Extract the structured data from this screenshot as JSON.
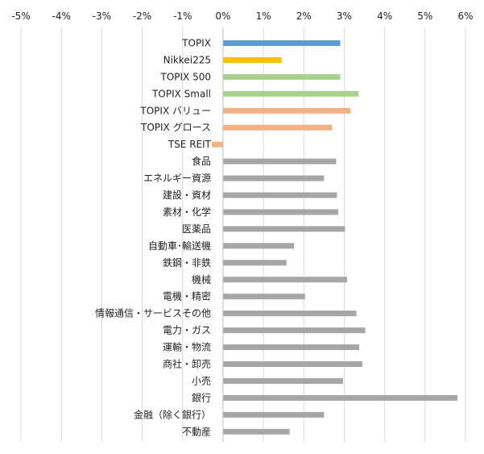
{
  "chart_data": {
    "type": "bar",
    "orientation": "horizontal",
    "title": "",
    "xlabel": "",
    "ylabel": "",
    "xlim": [
      -5,
      6
    ],
    "x_ticks": [
      -5,
      -4,
      -3,
      -2,
      -1,
      0,
      1,
      2,
      3,
      4,
      5,
      6
    ],
    "x_tick_labels": [
      "-5%",
      "-4%",
      "-3%",
      "-2%",
      "-1%",
      "0%",
      "1%",
      "2%",
      "3%",
      "4%",
      "5%",
      "6%"
    ],
    "x_axis_position": "top",
    "grid": true,
    "legend": "none",
    "unit": "%",
    "categories": [
      "TOPIX",
      "Nikkei225",
      "TOPIX 500",
      "TOPIX Small",
      "TOPIX バリュー",
      "TOPIX グロース",
      "TSE REIT",
      "食品",
      "エネルギー資源",
      "建設・資材",
      "素材・化学",
      "医薬品",
      "自動車･輸送機",
      "鉄鋼・非鉄",
      "機械",
      "電機・精密",
      "情報通信・サービスその他",
      "電力・ガス",
      "運輸・物流",
      "商社・卸売",
      "小売",
      "銀行",
      "金融（除く銀行）",
      "不動産"
    ],
    "values": [
      2.9,
      1.45,
      2.9,
      3.35,
      3.15,
      2.7,
      -0.28,
      2.8,
      2.5,
      2.82,
      2.85,
      3.02,
      1.76,
      1.57,
      3.07,
      2.03,
      3.3,
      3.52,
      3.37,
      3.45,
      2.97,
      5.8,
      2.5,
      1.65
    ],
    "colors": [
      "#5b9bd5",
      "#ffc000",
      "#a9d18e",
      "#a9d18e",
      "#f4b183",
      "#f4b183",
      "#f4b183",
      "#a6a6a6",
      "#a6a6a6",
      "#a6a6a6",
      "#a6a6a6",
      "#a6a6a6",
      "#a6a6a6",
      "#a6a6a6",
      "#a6a6a6",
      "#a6a6a6",
      "#a6a6a6",
      "#a6a6a6",
      "#a6a6a6",
      "#a6a6a6",
      "#a6a6a6",
      "#a6a6a6",
      "#a6a6a6",
      "#a6a6a6"
    ]
  }
}
